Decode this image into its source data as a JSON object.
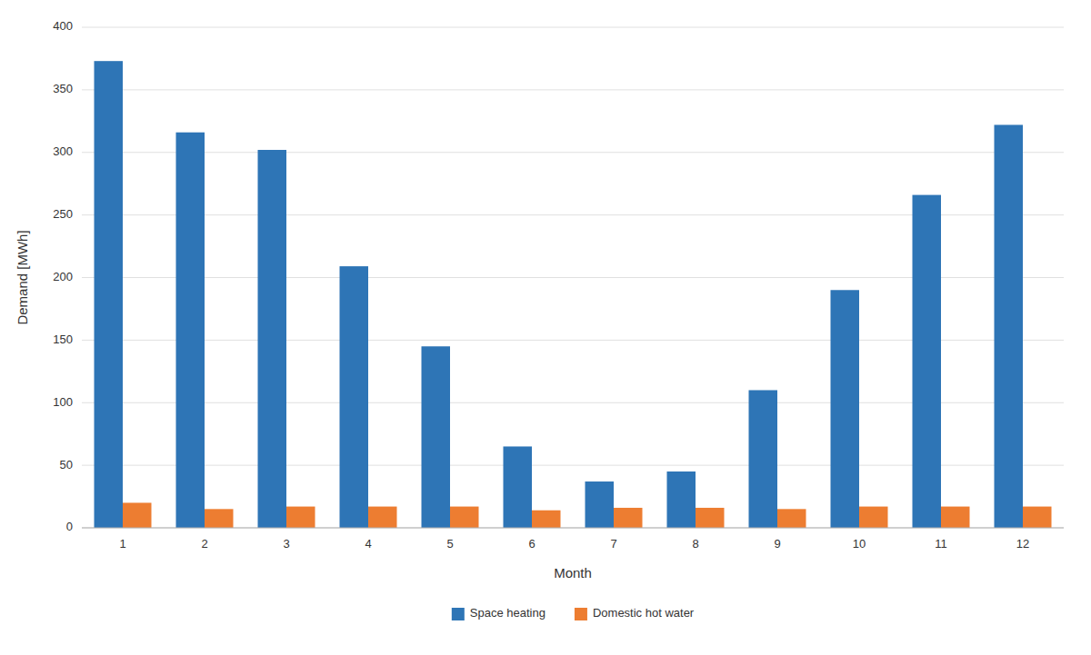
{
  "chart_data": {
    "type": "bar",
    "xlabel": "Month",
    "ylabel": "Demand [MWh]",
    "categories": [
      1,
      2,
      3,
      4,
      5,
      6,
      7,
      8,
      9,
      10,
      11,
      12
    ],
    "series": [
      {
        "name": "Space heating",
        "color": "#2E75B6",
        "values": [
          373,
          316,
          302,
          209,
          145,
          65,
          37,
          45,
          110,
          190,
          266,
          322
        ]
      },
      {
        "name": "Domestic hot water",
        "color": "#ED7D31",
        "values": [
          20,
          15,
          17,
          17,
          17,
          14,
          16,
          16,
          15,
          17,
          17,
          17
        ]
      }
    ],
    "ylim": [
      0,
      400
    ],
    "yticks": [
      0,
      50,
      100,
      150,
      200,
      250,
      300,
      350,
      400
    ],
    "grid": true,
    "legend": "bottom"
  }
}
